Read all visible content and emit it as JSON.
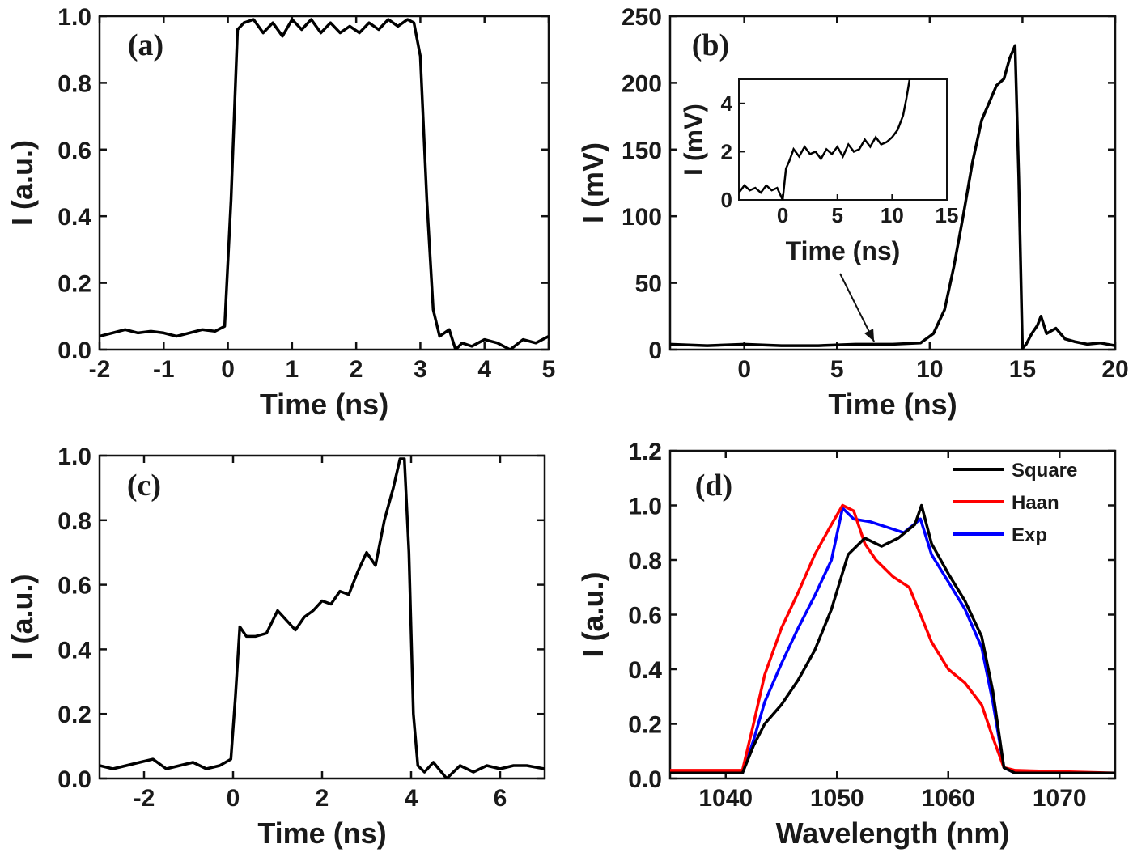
{
  "chart_data": [
    {
      "panel": "(a)",
      "type": "line",
      "xlabel": "Time (ns)",
      "ylabel": "I (a.u.)",
      "xlim": [
        -2,
        5
      ],
      "ylim": [
        0,
        1.0
      ],
      "xticks": [
        "-2",
        "-1",
        "0",
        "1",
        "2",
        "3",
        "4",
        "5"
      ],
      "yticks": [
        "0.0",
        "0.2",
        "0.4",
        "0.6",
        "0.8",
        "1.0"
      ],
      "series": [
        {
          "color": "#000000",
          "x": [
            -2.0,
            -1.8,
            -1.6,
            -1.4,
            -1.2,
            -1.0,
            -0.8,
            -0.6,
            -0.4,
            -0.2,
            -0.05,
            0.05,
            0.15,
            0.25,
            0.4,
            0.55,
            0.7,
            0.85,
            1.0,
            1.15,
            1.3,
            1.45,
            1.6,
            1.75,
            1.9,
            2.05,
            2.2,
            2.35,
            2.5,
            2.65,
            2.8,
            2.9,
            3.0,
            3.1,
            3.2,
            3.3,
            3.45,
            3.55,
            3.65,
            3.8,
            4.0,
            4.2,
            4.4,
            4.6,
            4.8,
            5.0
          ],
          "y": [
            0.04,
            0.05,
            0.06,
            0.05,
            0.055,
            0.05,
            0.04,
            0.05,
            0.06,
            0.055,
            0.07,
            0.45,
            0.96,
            0.98,
            0.99,
            0.95,
            0.98,
            0.94,
            0.99,
            0.96,
            0.99,
            0.95,
            0.98,
            0.95,
            0.97,
            0.95,
            0.98,
            0.96,
            0.99,
            0.97,
            0.99,
            0.98,
            0.88,
            0.45,
            0.12,
            0.04,
            0.06,
            0.0,
            0.02,
            0.01,
            0.03,
            0.02,
            0.0,
            0.03,
            0.02,
            0.04
          ]
        }
      ]
    },
    {
      "panel": "(b)",
      "type": "line",
      "xlabel": "Time (ns)",
      "ylabel": "I (mV)",
      "xlim": [
        -4,
        20
      ],
      "ylim": [
        0,
        250
      ],
      "xticks": [
        "0",
        "5",
        "10",
        "15",
        "20"
      ],
      "yticks": [
        "0",
        "50",
        "100",
        "150",
        "200",
        "250"
      ],
      "series": [
        {
          "color": "#000000",
          "x": [
            -4,
            -2,
            0,
            2,
            4,
            6,
            8,
            9.5,
            10.2,
            10.8,
            11.3,
            11.8,
            12.3,
            12.8,
            13.2,
            13.6,
            14.0,
            14.3,
            14.6,
            14.8,
            15.0,
            15.2,
            15.5,
            15.8,
            16.0,
            16.3,
            16.8,
            17.3,
            17.8,
            18.5,
            19.2,
            20
          ],
          "y": [
            4,
            3,
            4,
            3,
            3,
            4,
            4,
            5,
            12,
            30,
            62,
            100,
            140,
            172,
            185,
            198,
            203,
            218,
            228,
            130,
            1,
            4,
            12,
            18,
            25,
            12,
            16,
            8,
            6,
            4,
            5,
            3
          ]
        }
      ],
      "annotations": [
        "arrow pointing from inset to the baseline near 7 ns"
      ],
      "inset": {
        "type": "line",
        "xlabel": "Time (ns)",
        "ylabel": "I (mV)",
        "xlim": [
          -4,
          15
        ],
        "ylim": [
          0,
          5
        ],
        "xticks": [
          "0",
          "5",
          "10",
          "15"
        ],
        "yticks": [
          "0",
          "2",
          "4"
        ],
        "x": [
          -4,
          -3.5,
          -3,
          -2.5,
          -2,
          -1.5,
          -1,
          -0.5,
          0,
          0.3,
          0.6,
          1,
          1.5,
          2,
          2.5,
          3,
          3.5,
          4,
          4.5,
          5,
          5.5,
          6,
          6.5,
          7,
          7.5,
          8,
          8.5,
          9,
          9.5,
          10,
          10.5,
          11,
          11.3,
          11.6
        ],
        "y": [
          0.3,
          0.6,
          0.4,
          0.5,
          0.3,
          0.6,
          0.4,
          0.5,
          0.0,
          1.3,
          1.6,
          2.1,
          1.8,
          2.2,
          1.9,
          2.0,
          1.7,
          2.1,
          1.9,
          2.2,
          1.8,
          2.3,
          2.0,
          2.1,
          2.5,
          2.2,
          2.6,
          2.3,
          2.4,
          2.6,
          2.9,
          3.5,
          4.2,
          5.0
        ]
      }
    },
    {
      "panel": "(c)",
      "type": "line",
      "xlabel": "Time (ns)",
      "ylabel": "I (a.u.)",
      "xlim": [
        -3,
        7
      ],
      "ylim": [
        0,
        1.0
      ],
      "xticks": [
        "-2",
        "0",
        "2",
        "4",
        "6"
      ],
      "yticks": [
        "0.0",
        "0.2",
        "0.4",
        "0.6",
        "0.8",
        "1.0"
      ],
      "series": [
        {
          "color": "#000000",
          "x": [
            -3.0,
            -2.7,
            -2.4,
            -2.1,
            -1.8,
            -1.5,
            -1.2,
            -0.9,
            -0.6,
            -0.3,
            -0.05,
            0.05,
            0.15,
            0.3,
            0.5,
            0.75,
            1.0,
            1.2,
            1.4,
            1.6,
            1.8,
            2.0,
            2.2,
            2.4,
            2.6,
            2.8,
            3.0,
            3.2,
            3.4,
            3.6,
            3.75,
            3.85,
            3.95,
            4.05,
            4.15,
            4.3,
            4.5,
            4.8,
            5.1,
            5.4,
            5.7,
            6.0,
            6.3,
            6.6,
            7.0
          ],
          "y": [
            0.04,
            0.03,
            0.04,
            0.05,
            0.06,
            0.03,
            0.04,
            0.05,
            0.03,
            0.04,
            0.06,
            0.25,
            0.47,
            0.44,
            0.44,
            0.45,
            0.52,
            0.49,
            0.46,
            0.5,
            0.52,
            0.55,
            0.54,
            0.58,
            0.57,
            0.64,
            0.7,
            0.66,
            0.8,
            0.9,
            0.99,
            0.99,
            0.7,
            0.2,
            0.04,
            0.02,
            0.05,
            0.0,
            0.04,
            0.02,
            0.04,
            0.03,
            0.04,
            0.04,
            0.03
          ]
        }
      ]
    },
    {
      "panel": "(d)",
      "type": "line",
      "xlabel": "Wavelength (nm)",
      "ylabel": "I (a.u.)",
      "xlim": [
        1035,
        1075
      ],
      "ylim": [
        0,
        1.2
      ],
      "xticks": [
        "1040",
        "1050",
        "1060",
        "1070"
      ],
      "yticks": [
        "0.0",
        "0.2",
        "0.4",
        "0.6",
        "0.8",
        "1.0",
        "1.2"
      ],
      "legend_position": "top-right",
      "series": [
        {
          "name": "Square",
          "color": "#000000",
          "x": [
            1035,
            1041.5,
            1042.5,
            1043.5,
            1045,
            1046.5,
            1048,
            1049.5,
            1051,
            1052.5,
            1054,
            1055.5,
            1057,
            1057.6,
            1058.5,
            1060,
            1061.5,
            1063,
            1064,
            1065,
            1066,
            1075
          ],
          "y": [
            0.02,
            0.02,
            0.12,
            0.2,
            0.27,
            0.36,
            0.47,
            0.62,
            0.82,
            0.88,
            0.85,
            0.88,
            0.93,
            1.0,
            0.86,
            0.75,
            0.65,
            0.52,
            0.32,
            0.04,
            0.02,
            0.02
          ]
        },
        {
          "name": "Haan",
          "color": "#ff0000",
          "x": [
            1035,
            1041.5,
            1042.5,
            1043.5,
            1045,
            1046.5,
            1048,
            1049.5,
            1050.5,
            1051.5,
            1052.5,
            1053.5,
            1055,
            1056.5,
            1057.5,
            1058.5,
            1060,
            1061.5,
            1063,
            1064,
            1065,
            1066,
            1075
          ],
          "y": [
            0.03,
            0.03,
            0.2,
            0.38,
            0.55,
            0.68,
            0.82,
            0.93,
            1.0,
            0.98,
            0.86,
            0.8,
            0.74,
            0.7,
            0.6,
            0.5,
            0.4,
            0.35,
            0.27,
            0.15,
            0.04,
            0.03,
            0.02
          ]
        },
        {
          "name": "Exp",
          "color": "#0000ff",
          "x": [
            1035,
            1041.5,
            1042.5,
            1043.5,
            1045,
            1046.5,
            1048,
            1049.5,
            1050.5,
            1051.5,
            1053,
            1054.5,
            1056,
            1057.5,
            1058.5,
            1060,
            1061.5,
            1063,
            1064,
            1065,
            1066,
            1075
          ],
          "y": [
            0.02,
            0.02,
            0.14,
            0.28,
            0.42,
            0.55,
            0.67,
            0.8,
            0.99,
            0.95,
            0.94,
            0.92,
            0.9,
            0.95,
            0.82,
            0.72,
            0.62,
            0.48,
            0.28,
            0.04,
            0.02,
            0.02
          ]
        }
      ]
    }
  ]
}
